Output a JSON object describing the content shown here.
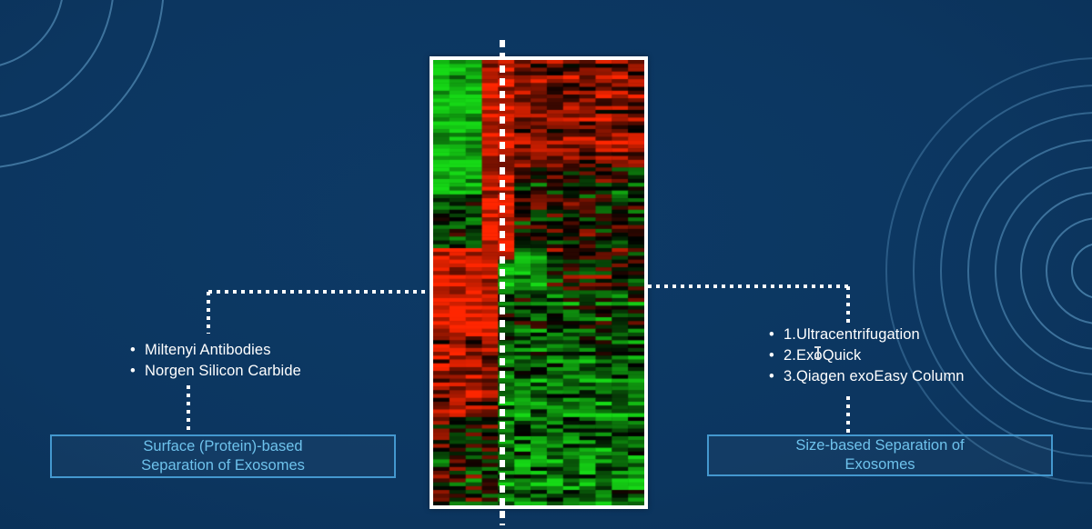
{
  "style": {
    "background_color": "#0d3a66",
    "connector_color": "#ffffff",
    "box_border_color": "#4498cf",
    "box_text_color": "#6ec2ec",
    "bullet_text_color": "#ffffff",
    "decor_circle_color": "#6fb0da"
  },
  "left_panel": {
    "bullets": [
      "Miltenyi Antibodies",
      "Norgen Silicon Carbide"
    ],
    "box_lines": [
      "Surface (Protein)-based",
      "Separation of Exosomes"
    ]
  },
  "right_panel": {
    "bullets": [
      "1.Ultracentrifugation",
      "2.ExoQuick",
      "3.Qiagen exoEasy Column"
    ],
    "box_lines": [
      "Size-based Separation of",
      "Exosomes"
    ]
  },
  "icons": {
    "text_cursor_icon": "i-beam"
  },
  "chart_data": {
    "type": "heatmap",
    "title": "",
    "xlabel": "",
    "ylabel": "",
    "legend": "none",
    "axes_labels_visible": false,
    "palette": {
      "positive": "#ff2600",
      "negative": "#16d916",
      "zero": "#000000"
    },
    "columns": 13,
    "rows": 116,
    "seed": 42,
    "group_divider_x_fraction": 0.31,
    "regions_format": "[x0, x1, y0, y1, mean, sd] fractions of plot; mean in [-1,1]; negative=green, positive=red, 0=black",
    "regions": [
      [
        0.0,
        0.26,
        0.0,
        0.3,
        -0.85,
        0.3
      ],
      [
        0.26,
        0.36,
        0.0,
        0.45,
        0.8,
        0.35
      ],
      [
        0.36,
        1.0,
        0.0,
        0.24,
        0.5,
        0.45
      ],
      [
        0.36,
        1.0,
        0.24,
        0.42,
        -0.05,
        0.55
      ],
      [
        0.0,
        0.26,
        0.3,
        0.42,
        -0.3,
        0.45
      ],
      [
        0.0,
        0.3,
        0.42,
        0.62,
        0.85,
        0.3
      ],
      [
        0.3,
        0.56,
        0.42,
        0.52,
        -0.7,
        0.35
      ],
      [
        0.56,
        1.0,
        0.42,
        0.52,
        0.1,
        0.55
      ],
      [
        0.3,
        1.0,
        0.52,
        0.64,
        -0.25,
        0.55
      ],
      [
        0.0,
        0.3,
        0.62,
        0.8,
        0.55,
        0.5
      ],
      [
        0.3,
        1.0,
        0.64,
        1.0,
        -0.5,
        0.45
      ],
      [
        0.0,
        0.3,
        0.8,
        1.0,
        0.0,
        0.65
      ]
    ],
    "default_mean": 0,
    "default_sd": 0.5
  }
}
